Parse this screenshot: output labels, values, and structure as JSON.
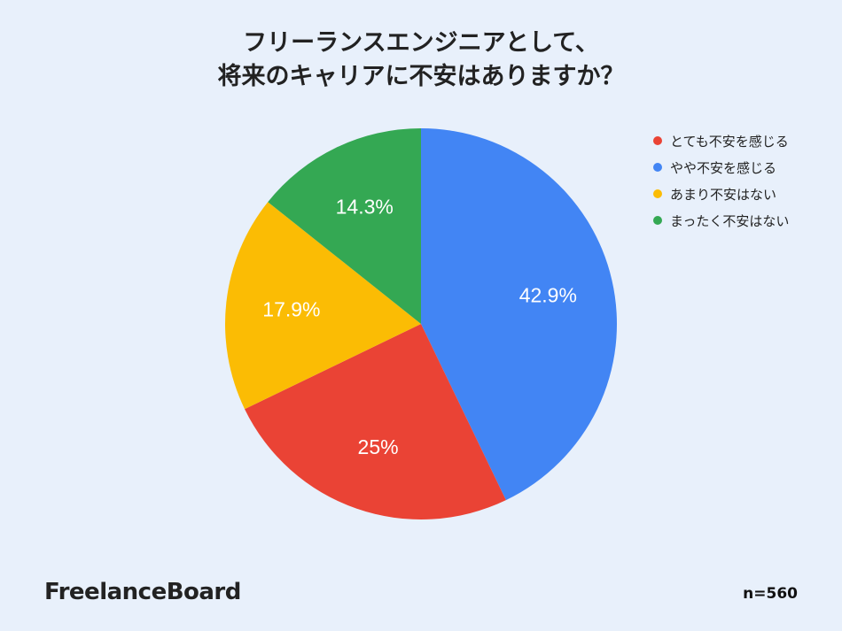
{
  "title_line1": "フリーランスエンジニアとして、",
  "title_line2": "将来のキャリアに不安はありますか？",
  "brand": "FreelanceBoard",
  "sample_size": "n=560",
  "chart_data": {
    "type": "pie",
    "slices": [
      {
        "label": "やや不安を感じる",
        "value": 42.9,
        "value_label": "42.9%",
        "color": "#4285f4"
      },
      {
        "label": "とても不安を感じる",
        "value": 25,
        "value_label": "25%",
        "color": "#ea4335"
      },
      {
        "label": "あまり不安はない",
        "value": 17.9,
        "value_label": "17.9%",
        "color": "#fbbc04"
      },
      {
        "label": "まったく不安はない",
        "value": 14.3,
        "value_label": "14.3%",
        "color": "#34a853"
      }
    ],
    "legend": [
      {
        "label": "とても不安を感じる",
        "color": "#ea4335"
      },
      {
        "label": "やや不安を感じる",
        "color": "#4285f4"
      },
      {
        "label": "あまり不安はない",
        "color": "#fbbc04"
      },
      {
        "label": "まったく不安はない",
        "color": "#34a853"
      }
    ],
    "legend_position": "top-right",
    "start_angle": "12 o'clock",
    "direction": "clockwise"
  }
}
